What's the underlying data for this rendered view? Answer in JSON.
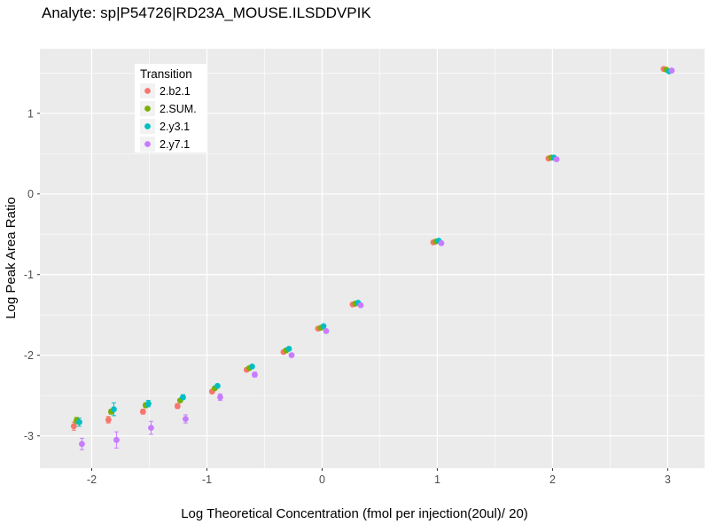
{
  "chart_data": {
    "type": "scatter",
    "title": "Analyte: sp|P54726|RD23A_MOUSE.ILSDDVPIK",
    "xlabel": "Log Theoretical Concentration (fmol per injection(20ul)/ 20)",
    "ylabel": "Log Peak Area Ratio",
    "xlim": [
      -2.45,
      3.32
    ],
    "ylim": [
      -3.4,
      1.8
    ],
    "x_ticks": [
      -2,
      -1,
      0,
      1,
      2,
      3
    ],
    "y_ticks": [
      -3,
      -2,
      -1,
      0,
      1
    ],
    "grid": true,
    "panel_background": "#EBEBEB",
    "gridline_color": "#FFFFFF",
    "tick_color": "#333333",
    "tick_label_color": "#4D4D4D",
    "legend": {
      "title": "Transition",
      "position": "inside-top-left"
    },
    "x": [
      -2.12,
      -1.82,
      -1.52,
      -1.22,
      -0.92,
      -0.62,
      -0.3,
      0,
      0.3,
      1,
      2,
      3
    ],
    "series": [
      {
        "name": "2.b2.1",
        "color": "#F8766D",
        "y": [
          -2.88,
          -2.8,
          -2.7,
          -2.63,
          -2.45,
          -2.18,
          -1.96,
          -1.67,
          -1.37,
          -0.6,
          0.44,
          1.55
        ],
        "yerr": [
          0.05,
          0.04,
          0.03,
          0.03,
          0.02,
          0.02,
          0.02,
          0.01,
          0.01,
          0.01,
          0.01,
          0.01
        ]
      },
      {
        "name": "2.SUM.",
        "color": "#7CAE00",
        "y": [
          -2.81,
          -2.7,
          -2.62,
          -2.56,
          -2.41,
          -2.16,
          -1.94,
          -1.66,
          -1.36,
          -0.59,
          0.45,
          1.54
        ],
        "yerr": [
          0.04,
          0.03,
          0.03,
          0.02,
          0.02,
          0.02,
          0.01,
          0.01,
          0.01,
          0.01,
          0.01,
          0.01
        ]
      },
      {
        "name": "2.y3.1",
        "color": "#00BFC4",
        "y": [
          -2.83,
          -2.67,
          -2.6,
          -2.52,
          -2.38,
          -2.14,
          -1.92,
          -1.64,
          -1.35,
          -0.58,
          0.45,
          1.52
        ],
        "yerr": [
          0.05,
          0.08,
          0.04,
          0.03,
          0.02,
          0.02,
          0.02,
          0.01,
          0.01,
          0.01,
          0.01,
          0.01
        ]
      },
      {
        "name": "2.y7.1",
        "color": "#C77CFF",
        "y": [
          -3.1,
          -3.05,
          -2.9,
          -2.79,
          -2.52,
          -2.24,
          -2.0,
          -1.7,
          -1.38,
          -0.61,
          0.43,
          1.53
        ],
        "yerr": [
          0.07,
          0.1,
          0.08,
          0.05,
          0.04,
          0.03,
          0.02,
          0.02,
          0.01,
          0.01,
          0.01,
          0.01
        ]
      }
    ]
  }
}
